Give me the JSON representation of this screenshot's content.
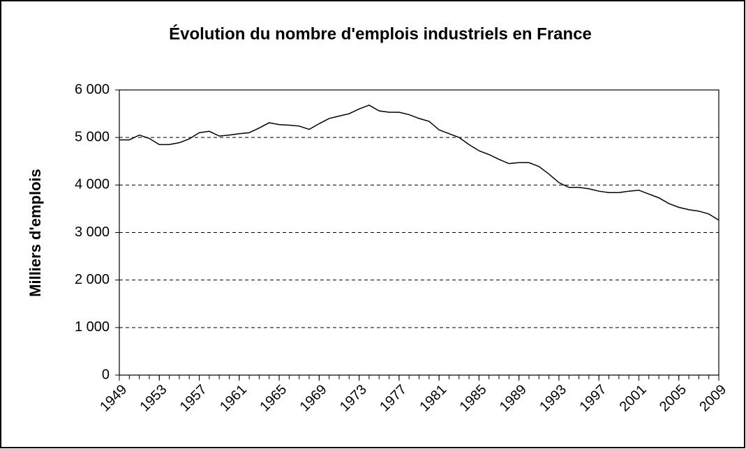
{
  "chart_data": {
    "type": "line",
    "title": "Évolution du nombre d'emplois industriels en France",
    "y_label": "Milliers d'emplois",
    "x": [
      1949,
      1950,
      1951,
      1952,
      1953,
      1954,
      1955,
      1956,
      1957,
      1958,
      1959,
      1960,
      1961,
      1962,
      1963,
      1964,
      1965,
      1966,
      1967,
      1968,
      1969,
      1970,
      1971,
      1972,
      1973,
      1974,
      1975,
      1976,
      1977,
      1978,
      1979,
      1980,
      1981,
      1982,
      1983,
      1984,
      1985,
      1986,
      1987,
      1988,
      1989,
      1990,
      1991,
      1992,
      1993,
      1994,
      1995,
      1996,
      1997,
      1998,
      1999,
      2000,
      2001,
      2002,
      2003,
      2004,
      2005,
      2006,
      2007,
      2008,
      2009
    ],
    "values": [
      4950,
      4950,
      5050,
      4980,
      4850,
      4850,
      4890,
      4970,
      5100,
      5130,
      5030,
      5050,
      5080,
      5100,
      5200,
      5310,
      5270,
      5260,
      5240,
      5170,
      5290,
      5400,
      5450,
      5500,
      5600,
      5680,
      5560,
      5530,
      5530,
      5480,
      5400,
      5340,
      5160,
      5080,
      5000,
      4850,
      4720,
      4640,
      4540,
      4450,
      4470,
      4470,
      4390,
      4230,
      4050,
      3950,
      3950,
      3920,
      3870,
      3840,
      3840,
      3870,
      3890,
      3810,
      3730,
      3610,
      3530,
      3480,
      3450,
      3390,
      3260
    ],
    "color": "#000000",
    "xlim": [
      1949,
      2009
    ],
    "xticks": [
      1949,
      1953,
      1957,
      1961,
      1965,
      1969,
      1973,
      1977,
      1981,
      1985,
      1989,
      1993,
      1997,
      2001,
      2005,
      2009
    ],
    "ylim": [
      0,
      6000
    ],
    "yticks": [
      0,
      {
        "value": 1000,
        "label": "1 000"
      },
      {
        "value": 2000,
        "label": "2 000"
      },
      {
        "value": 3000,
        "label": "3 000"
      },
      {
        "value": 4000,
        "label": "4 000"
      },
      {
        "value": 5000,
        "label": "5 000"
      },
      {
        "value": 6000,
        "label": "6 000"
      }
    ],
    "grid": true
  }
}
